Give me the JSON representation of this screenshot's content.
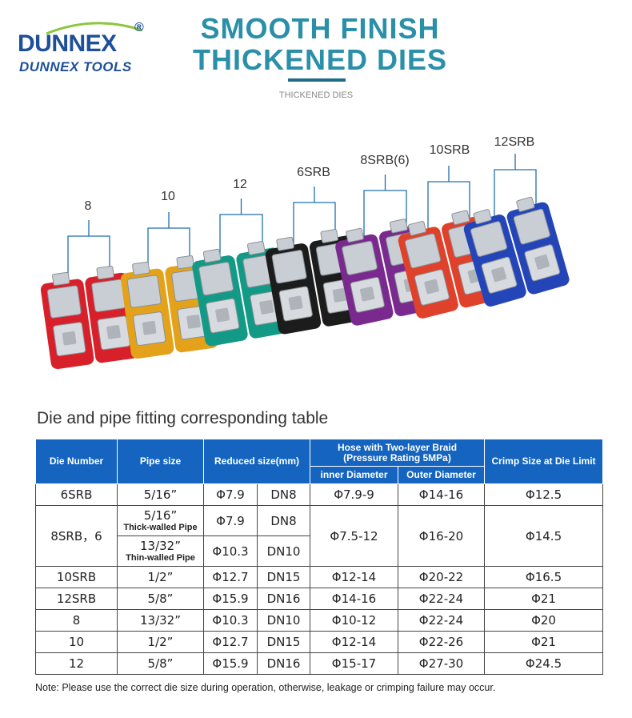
{
  "brand": {
    "logo_text": "DUNNEX",
    "registered_mark": "®",
    "subtitle": "DUNNEX TOOLS",
    "color": "#1d4f9a"
  },
  "header": {
    "title_line1": "SMOOTH FINISH",
    "title_line2": "THICKENED DIES",
    "subtitle": "THICKENED DIES",
    "title_color": "#2a8fa8"
  },
  "dies": [
    {
      "label": "8",
      "color": "#d8202a"
    },
    {
      "label": "10",
      "color": "#e3a21a"
    },
    {
      "label": "12",
      "color": "#139a86"
    },
    {
      "label": "6SRB",
      "color": "#1c1c1c"
    },
    {
      "label": "8SRB(6)",
      "color": "#7a2a8e"
    },
    {
      "label": "10SRB",
      "color": "#e0412a"
    },
    {
      "label": "12SRB",
      "color": "#2445b8"
    }
  ],
  "table": {
    "title": "Die and pipe fitting corresponding table",
    "headers": {
      "die_number": "Die Number",
      "pipe_size": "Pipe size",
      "reduced_size": "Reduced size(mm)",
      "hose_line1": "Hose with Two-layer Braid",
      "hose_line2": "(Pressure Rating 5MPa)",
      "inner_diameter": "inner Diameter",
      "outer_diameter": "Outer Diameter",
      "crimp_size": "Crimp Size at Die Limit"
    },
    "row_6srb": {
      "die": "6SRB",
      "pipe": "5/16”",
      "reduced_phi": "Φ7.9",
      "reduced_dn": "DN8",
      "inner": "Φ7.9-9",
      "outer": "Φ14-16",
      "crimp": "Φ12.5"
    },
    "row_8srb": {
      "die": "8SRB，6",
      "pipe_a": "5/16”",
      "pipe_a_note": "Thick-walled Pipe",
      "reduced_phi_a": "Φ7.9",
      "reduced_dn_a": "DN8",
      "pipe_b": "13/32”",
      "pipe_b_note": "Thin-walled Pipe",
      "reduced_phi_b": "Φ10.3",
      "reduced_dn_b": "DN10",
      "inner": "Φ7.5-12",
      "outer": "Φ16-20",
      "crimp": "Φ14.5"
    },
    "rows": [
      {
        "die": "10SRB",
        "pipe": "1/2”",
        "reduced_phi": "Φ12.7",
        "reduced_dn": "DN15",
        "inner": "Φ12-14",
        "outer": "Φ20-22",
        "crimp": "Φ16.5"
      },
      {
        "die": "12SRB",
        "pipe": "5/8”",
        "reduced_phi": "Φ15.9",
        "reduced_dn": "DN16",
        "inner": "Φ14-16",
        "outer": "Φ22-24",
        "crimp": "Φ21"
      },
      {
        "die": "8",
        "pipe": "13/32”",
        "reduced_phi": "Φ10.3",
        "reduced_dn": "DN10",
        "inner": "Φ10-12",
        "outer": "Φ22-24",
        "crimp": "Φ20"
      },
      {
        "die": "10",
        "pipe": "1/2”",
        "reduced_phi": "Φ12.7",
        "reduced_dn": "DN15",
        "inner": "Φ12-14",
        "outer": "Φ22-26",
        "crimp": "Φ21"
      },
      {
        "die": "12",
        "pipe": "5/8”",
        "reduced_phi": "Φ15.9",
        "reduced_dn": "DN16",
        "inner": "Φ15-17",
        "outer": "Φ27-30",
        "crimp": "Φ24.5"
      }
    ]
  },
  "note": "Note: Please use the correct die size during operation, otherwise, leakage or crimping failure may occur."
}
